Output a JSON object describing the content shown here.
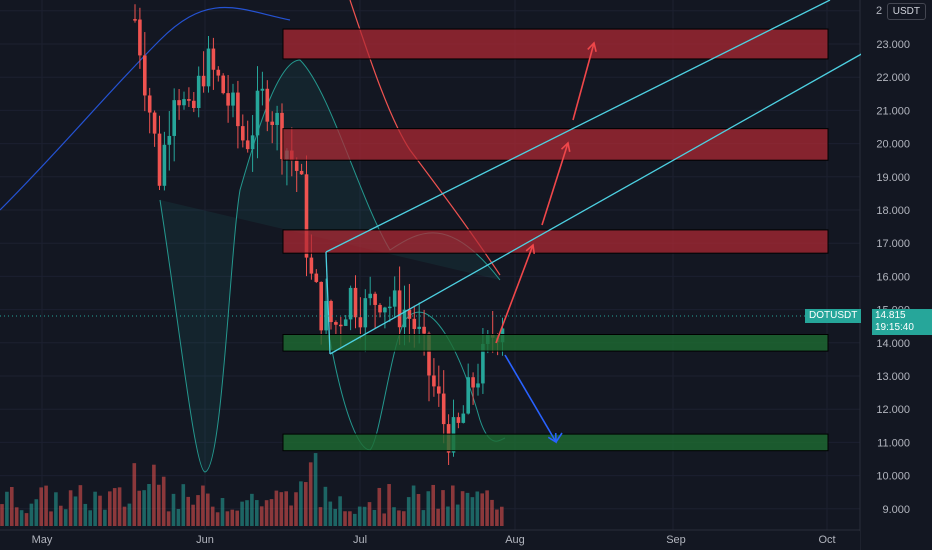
{
  "symbol": "DOTUSDT",
  "quote_currency": "USDT",
  "last_price": "14.815",
  "countdown": "19:15:40",
  "price_axis": {
    "labels": [
      "23.000",
      "22.000",
      "21.000",
      "20.000",
      "19.000",
      "18.000",
      "17.000",
      "16.000",
      "15.000",
      "14.000",
      "13.000",
      "12.000",
      "11.000",
      "10.000",
      "9.000"
    ],
    "top_partial": "2"
  },
  "time_axis": {
    "labels": [
      "May",
      "Jun",
      "Jul",
      "Aug",
      "Sep",
      "Oct"
    ]
  },
  "colors": {
    "background": "#131722",
    "up": "#26a69a",
    "down": "#ef5350",
    "resistance_zone": "#b22833",
    "support_zone": "#1e6b32",
    "channel": "#4dd0e1",
    "bull_arrow": "#f0474a",
    "bear_arrow": "#2962ff"
  },
  "zones": {
    "resistance": [
      [
        22.55,
        23.45
      ],
      [
        19.5,
        20.45
      ],
      [
        16.7,
        17.4
      ]
    ],
    "support": [
      [
        13.75,
        14.25
      ],
      [
        10.75,
        11.25
      ]
    ]
  }
}
